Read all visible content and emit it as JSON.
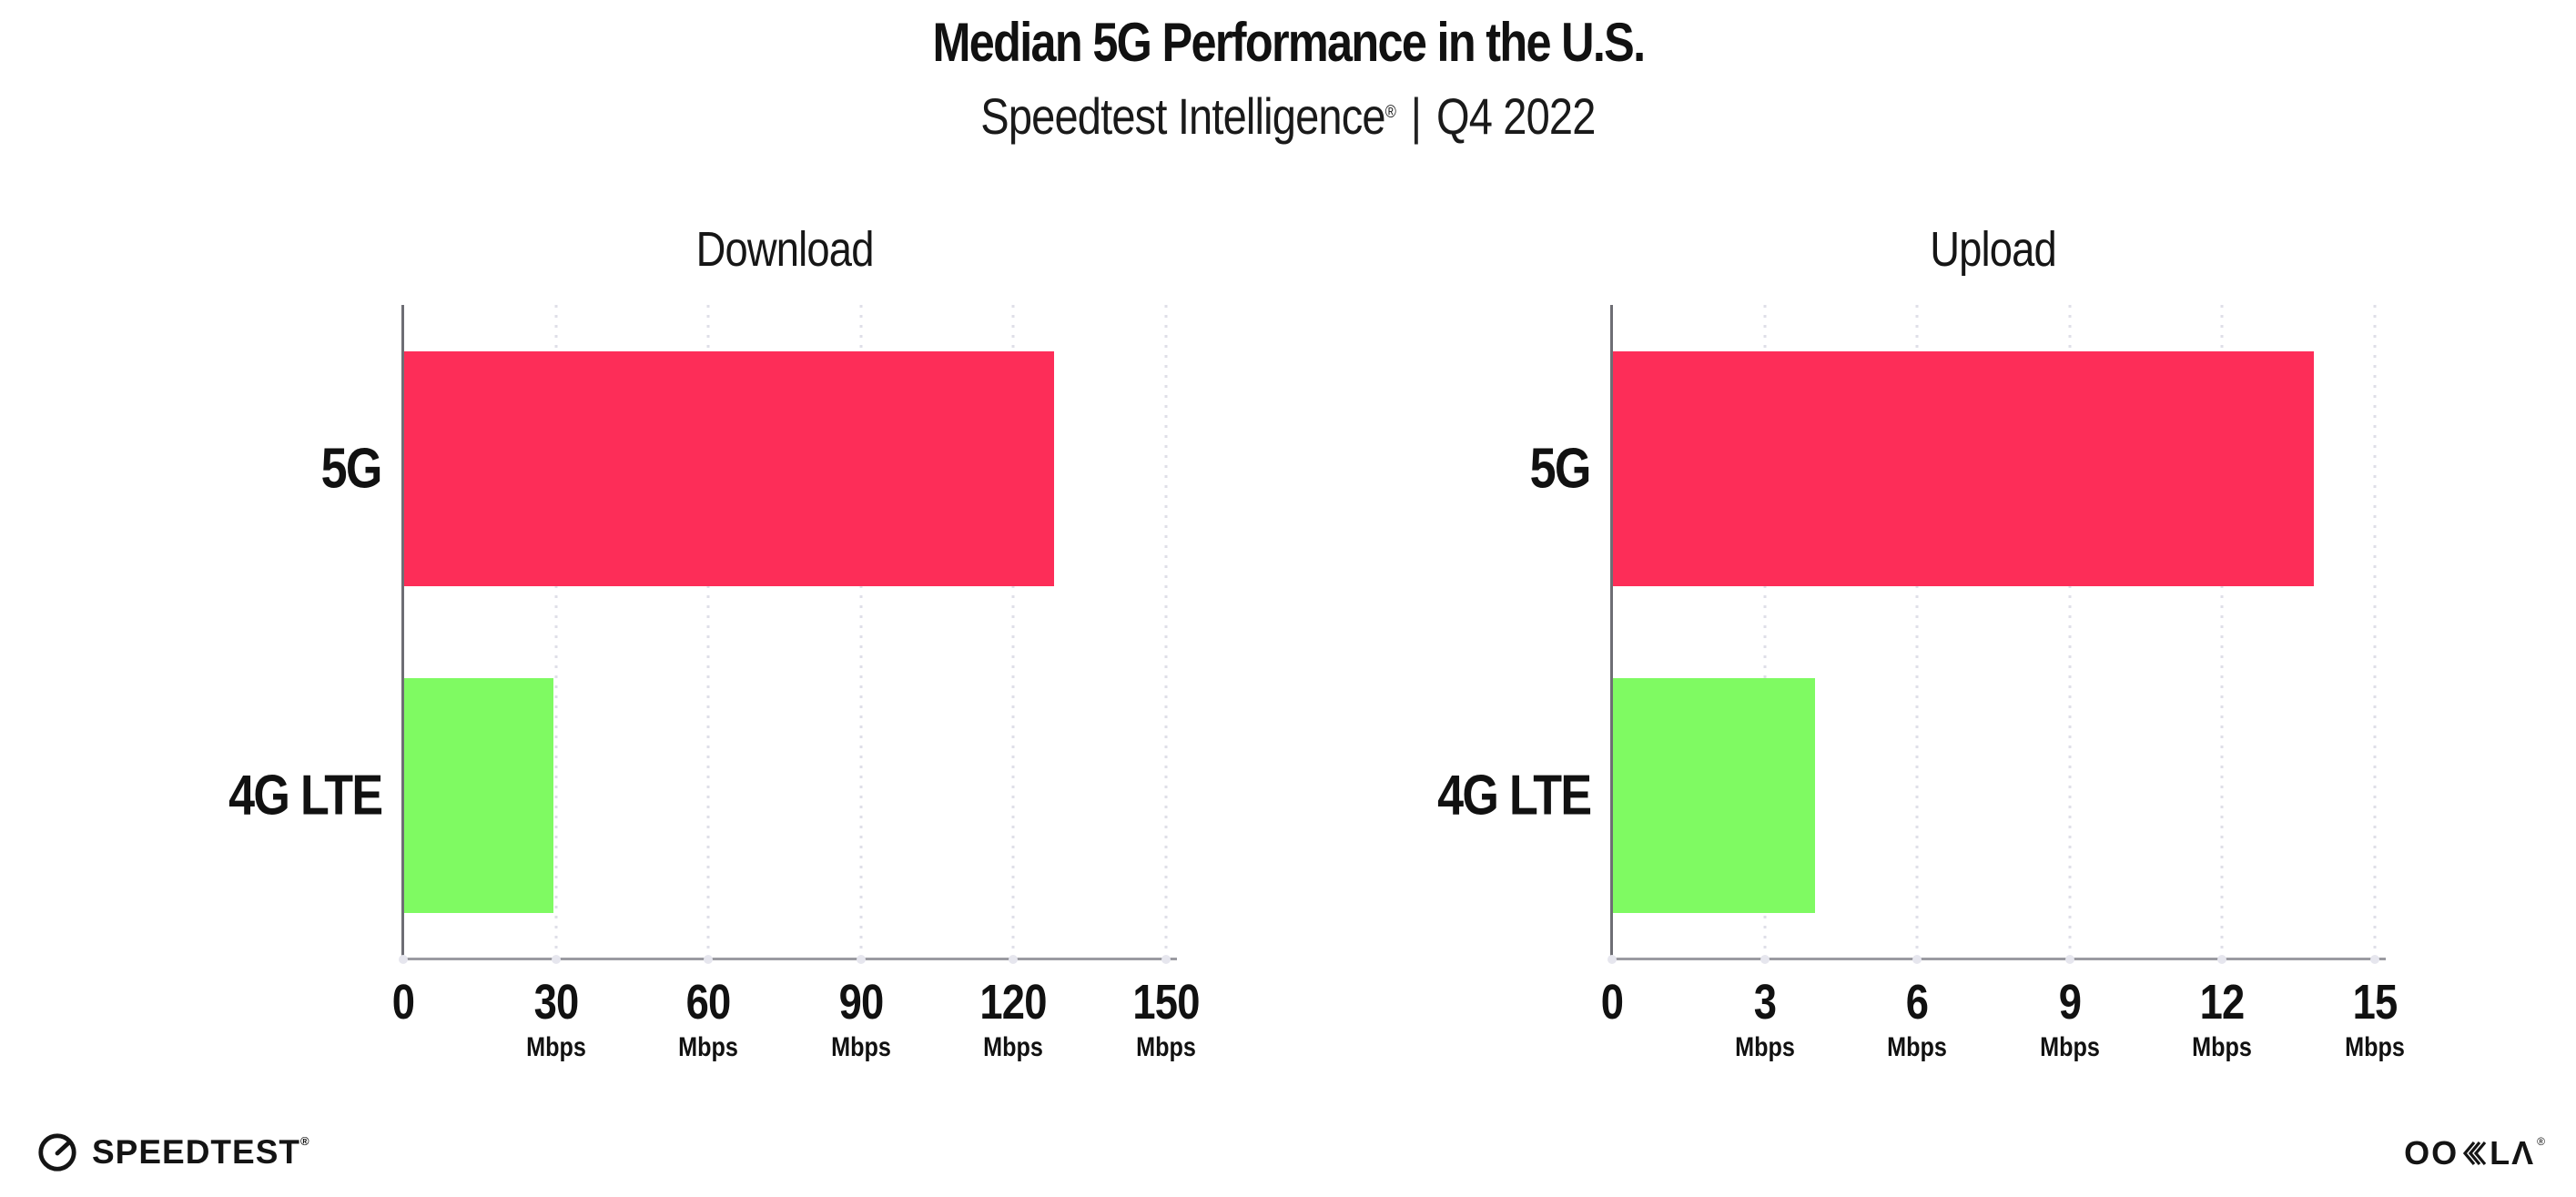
{
  "page": {
    "background": "#ffffff"
  },
  "header": {
    "title": "Median 5G Performance in the U.S.",
    "subtitle": {
      "brand": "Speedtest Intelligence",
      "registered": "®",
      "separator": "|",
      "period": "Q4 2022"
    }
  },
  "chart_data": [
    {
      "type": "bar",
      "orientation": "horizontal",
      "title": "Download",
      "categories": [
        "5G",
        "4G LTE"
      ],
      "values": [
        128,
        29.5
      ],
      "value_unit": "Mbps",
      "xlim": [
        0,
        150
      ],
      "xticks": [
        0,
        30,
        60,
        90,
        120,
        150
      ],
      "xtick_unit": "Mbps",
      "bar_colors": [
        "#fd2d58",
        "#7ffa62"
      ],
      "grid": "vertical-dotted",
      "legend": "none"
    },
    {
      "type": "bar",
      "orientation": "horizontal",
      "title": "Upload",
      "categories": [
        "5G",
        "4G LTE"
      ],
      "values": [
        13.8,
        4
      ],
      "value_unit": "Mbps",
      "xlim": [
        0,
        15
      ],
      "xticks": [
        0,
        3,
        6,
        9,
        12,
        15
      ],
      "xtick_unit": "Mbps",
      "bar_colors": [
        "#fd2d58",
        "#7ffa62"
      ],
      "grid": "vertical-dotted",
      "legend": "none"
    }
  ],
  "footer": {
    "speedtest": {
      "label": "SPEEDTEST",
      "registered": "®"
    },
    "ookla": {
      "label": "OOKLA",
      "part_left": "OO",
      "part_right": "LΛ",
      "registered": "®"
    }
  },
  "colors": {
    "bar_5g": "#fd2d58",
    "bar_4g_lte": "#7ffa62",
    "axis_line": "#9b9ba1",
    "spine": "#6e6e74",
    "gridline": "#dfdfe8",
    "text": "#111111",
    "logo": "#141414"
  }
}
